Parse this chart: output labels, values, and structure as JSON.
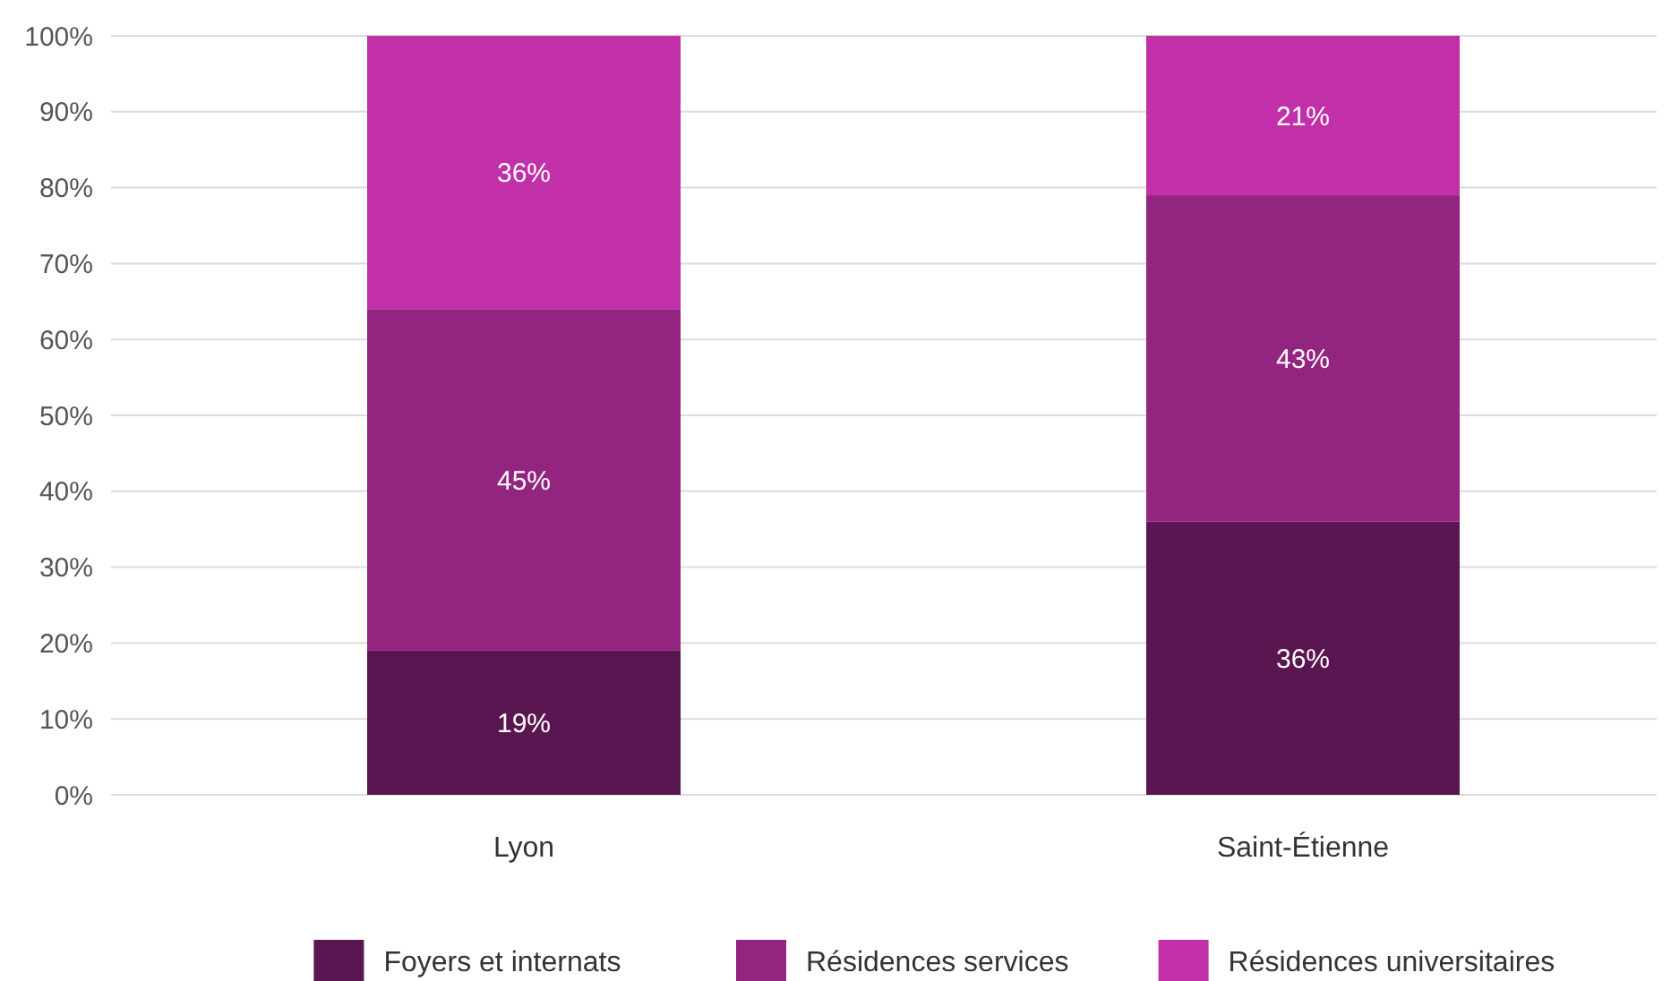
{
  "chart_data": {
    "type": "bar",
    "stacked": true,
    "categories": [
      "Lyon",
      "Saint-Étienne"
    ],
    "series": [
      {
        "name": "Foyers et internats",
        "color": "#5a1650",
        "values": [
          19,
          36
        ],
        "value_labels": [
          "19%",
          "36%"
        ]
      },
      {
        "name": "Résidences services",
        "color": "#93247f",
        "values": [
          45,
          43
        ],
        "value_labels": [
          "45%",
          "43%"
        ]
      },
      {
        "name": "Résidences universitaires",
        "color": "#c12fa9",
        "values": [
          36,
          21
        ],
        "value_labels": [
          "36%",
          "21%"
        ]
      }
    ],
    "ylim": [
      0,
      100
    ],
    "yticks": [
      {
        "value": 0,
        "label": "0%"
      },
      {
        "value": 10,
        "label": "10%"
      },
      {
        "value": 20,
        "label": "20%"
      },
      {
        "value": 30,
        "label": "30%"
      },
      {
        "value": 40,
        "label": "40%"
      },
      {
        "value": 50,
        "label": "50%"
      },
      {
        "value": 60,
        "label": "60%"
      },
      {
        "value": 70,
        "label": "70%"
      },
      {
        "value": 80,
        "label": "80%"
      },
      {
        "value": 90,
        "label": "90%"
      },
      {
        "value": 100,
        "label": "100%"
      }
    ],
    "grid": "y",
    "legend": "bottom"
  }
}
